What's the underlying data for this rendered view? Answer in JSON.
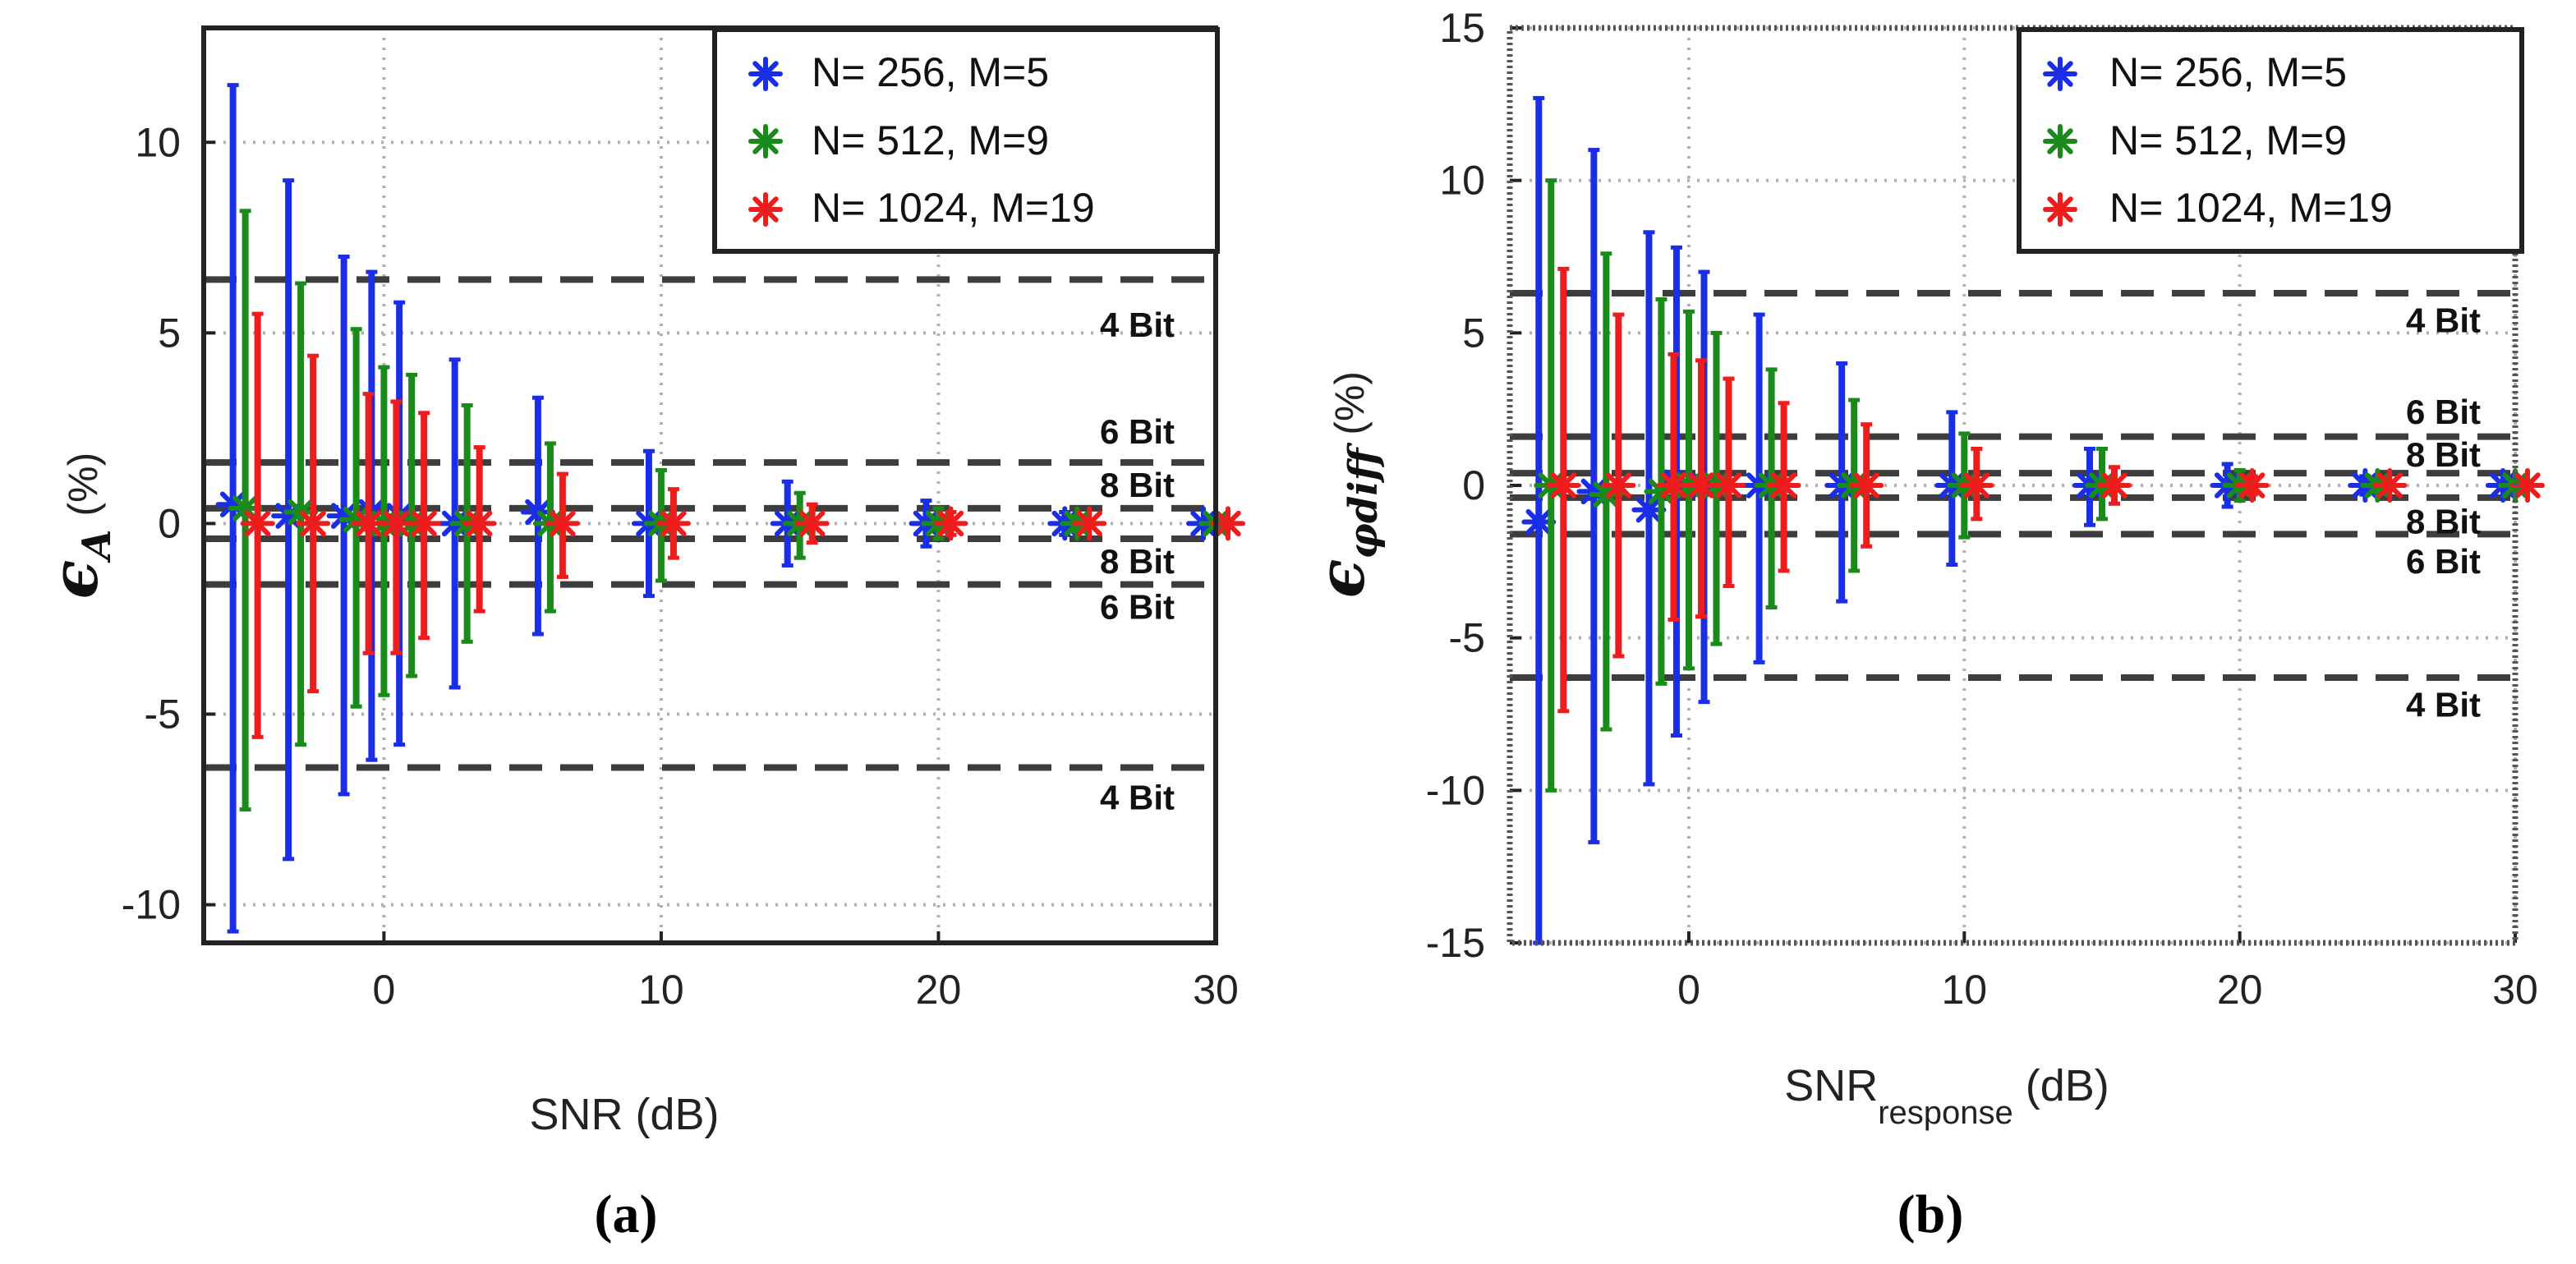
{
  "colors": {
    "blue": "#1a2ee8",
    "green": "#1a8a1a",
    "red": "#ee1c1c",
    "dashed": "#3d3d3d",
    "grid": "#b0b0b0",
    "axis": "#222222"
  },
  "chart_data": [
    {
      "type": "errorbar",
      "panel_label": "(a)",
      "xlabel": "SNR (dB)",
      "ylabel_main": "ϵ",
      "ylabel_sub": "A",
      "ylabel_unit": "(%)",
      "xlim": [
        -6.5,
        30
      ],
      "ylim": [
        -11,
        13
      ],
      "xticks": [
        0,
        10,
        20,
        30
      ],
      "xtick_labels": [
        "0",
        "10",
        "20",
        "30"
      ],
      "yticks": [
        -10,
        -5,
        0,
        5,
        10
      ],
      "ytick_labels": [
        "-10",
        "-5",
        "0",
        "5",
        "10"
      ],
      "grid": true,
      "legend_position": "top-right",
      "x": [
        -5,
        -3,
        -1,
        0,
        1,
        3,
        6,
        10,
        15,
        20,
        25,
        30
      ],
      "series": [
        {
          "name": "N= 256, M=5",
          "color_key": "blue",
          "values": [
            0.5,
            0.2,
            0.2,
            0.3,
            0.2,
            0.0,
            0.3,
            0.0,
            0.0,
            0.0,
            0.0,
            0.0
          ],
          "err_upper": [
            11.5,
            9.0,
            7.0,
            6.6,
            5.8,
            4.3,
            3.3,
            1.9,
            1.1,
            0.6,
            0.3,
            0.1
          ],
          "err_lower": [
            -10.7,
            -8.8,
            -7.1,
            -6.2,
            -5.8,
            -4.3,
            -2.9,
            -1.9,
            -1.1,
            -0.6,
            -0.3,
            -0.1
          ]
        },
        {
          "name": "N= 512, M=9",
          "color_key": "green",
          "values": [
            0.4,
            0.3,
            0.1,
            0.0,
            0.0,
            0.0,
            0.0,
            0.0,
            0.0,
            0.0,
            0.0,
            0.0
          ],
          "err_upper": [
            8.2,
            6.3,
            5.1,
            4.1,
            3.9,
            3.1,
            2.1,
            1.4,
            0.8,
            0.4,
            0.2,
            0.1
          ],
          "err_lower": [
            -7.5,
            -5.8,
            -4.8,
            -4.5,
            -4.0,
            -3.1,
            -2.3,
            -1.5,
            -0.9,
            -0.4,
            -0.2,
            -0.1
          ]
        },
        {
          "name": "N= 1024, M=19",
          "color_key": "red",
          "values": [
            0.0,
            0.0,
            0.0,
            0.0,
            0.0,
            0.0,
            0.0,
            0.0,
            0.0,
            0.0,
            0.0,
            0.0
          ],
          "err_upper": [
            5.5,
            4.4,
            3.4,
            3.2,
            2.9,
            2.0,
            1.3,
            0.9,
            0.5,
            0.3,
            0.1,
            0.05
          ],
          "err_lower": [
            -5.6,
            -4.4,
            -3.4,
            -3.4,
            -3.0,
            -2.3,
            -1.4,
            -0.9,
            -0.5,
            -0.3,
            -0.1,
            -0.05
          ]
        }
      ],
      "thresholds": [
        {
          "value": 6.4,
          "label": "4 Bit",
          "label_value": 5.2
        },
        {
          "value": 1.6,
          "label": "6 Bit",
          "label_value": 2.4
        },
        {
          "value": 0.4,
          "label": "8 Bit",
          "label_value": 1.0
        },
        {
          "value": -0.4,
          "label": "8 Bit",
          "label_value": -1.0
        },
        {
          "value": -1.6,
          "label": "6 Bit",
          "label_value": -2.2
        },
        {
          "value": -6.4,
          "label": "4 Bit",
          "label_value": -7.2
        }
      ]
    },
    {
      "type": "errorbar",
      "panel_label": "(b)",
      "xlabel": "SNR",
      "xlabel_sub": "response",
      "xlabel_tail": " (dB)",
      "ylabel_main": "ϵ",
      "ylabel_sub": "φdiff",
      "ylabel_unit": "(%)",
      "xlim": [
        -6.5,
        30
      ],
      "ylim": [
        -15,
        15
      ],
      "xticks": [
        0,
        10,
        20,
        30
      ],
      "xtick_labels": [
        "0",
        "10",
        "20",
        "30"
      ],
      "yticks": [
        -15,
        -10,
        -5,
        0,
        5,
        10,
        15
      ],
      "ytick_labels": [
        "-15",
        "-10",
        "-5",
        "0",
        "5",
        "10",
        "15"
      ],
      "grid": true,
      "legend_position": "top-right",
      "x": [
        -5,
        -3,
        -1,
        0,
        1,
        3,
        6,
        10,
        15,
        20,
        25,
        30
      ],
      "series": [
        {
          "name": "N= 256, M=5",
          "color_key": "blue",
          "values": [
            -1.2,
            -0.2,
            -0.8,
            0.1,
            0.0,
            0.0,
            0.0,
            0.0,
            0.0,
            0.0,
            0.0,
            0.0
          ],
          "err_upper": [
            12.7,
            11.0,
            8.3,
            7.8,
            7.0,
            5.6,
            4.0,
            2.4,
            1.2,
            0.7,
            0.3,
            0.1
          ],
          "err_lower": [
            -15.0,
            -11.7,
            -9.8,
            -8.2,
            -7.1,
            -5.8,
            -3.8,
            -2.6,
            -1.3,
            -0.7,
            -0.3,
            -0.1
          ]
        },
        {
          "name": "N= 512, M=9",
          "color_key": "green",
          "values": [
            0.0,
            -0.3,
            -0.2,
            0.0,
            0.0,
            0.0,
            0.0,
            0.0,
            0.0,
            0.0,
            0.0,
            0.0
          ],
          "err_upper": [
            10.0,
            7.6,
            6.1,
            5.7,
            5.0,
            3.8,
            2.8,
            1.7,
            1.2,
            0.5,
            0.2,
            0.1
          ],
          "err_lower": [
            -10.0,
            -8.0,
            -6.5,
            -6.0,
            -5.2,
            -4.0,
            -2.8,
            -1.7,
            -1.1,
            -0.5,
            -0.2,
            -0.1
          ]
        },
        {
          "name": "N= 1024, M=19",
          "color_key": "red",
          "values": [
            0.0,
            0.0,
            0.0,
            0.0,
            0.0,
            0.0,
            0.0,
            0.0,
            0.0,
            0.0,
            0.0,
            0.0
          ],
          "err_upper": [
            7.1,
            5.6,
            4.3,
            4.1,
            3.5,
            2.7,
            2.0,
            1.2,
            0.6,
            0.3,
            0.1,
            0.05
          ],
          "err_lower": [
            -7.4,
            -5.6,
            -4.4,
            -4.3,
            -3.3,
            -2.8,
            -2.0,
            -1.1,
            -0.6,
            -0.3,
            -0.1,
            -0.05
          ]
        }
      ],
      "thresholds": [
        {
          "value": 6.3,
          "label": "4 Bit",
          "label_value": 5.4
        },
        {
          "value": 1.6,
          "label": "6 Bit",
          "label_value": 2.4
        },
        {
          "value": 0.4,
          "label": "8 Bit",
          "label_value": 1.0
        },
        {
          "value": -0.4,
          "label": "8 Bit",
          "label_value": -1.2
        },
        {
          "value": -1.6,
          "label": "6 Bit",
          "label_value": -2.5
        },
        {
          "value": -6.3,
          "label": "4 Bit",
          "label_value": -7.2
        }
      ]
    }
  ]
}
